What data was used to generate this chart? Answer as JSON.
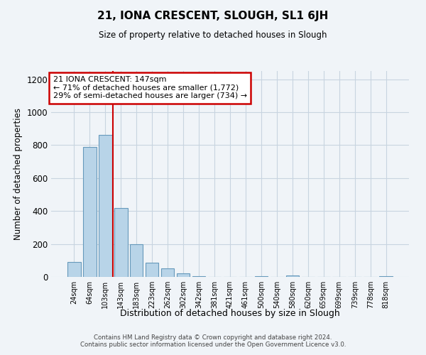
{
  "title": "21, IONA CRESCENT, SLOUGH, SL1 6JH",
  "subtitle": "Size of property relative to detached houses in Slough",
  "xlabel": "Distribution of detached houses by size in Slough",
  "ylabel": "Number of detached properties",
  "bar_labels": [
    "24sqm",
    "64sqm",
    "103sqm",
    "143sqm",
    "183sqm",
    "223sqm",
    "262sqm",
    "302sqm",
    "342sqm",
    "381sqm",
    "421sqm",
    "461sqm",
    "500sqm",
    "540sqm",
    "580sqm",
    "620sqm",
    "659sqm",
    "699sqm",
    "739sqm",
    "778sqm",
    "818sqm"
  ],
  "bar_values": [
    90,
    790,
    860,
    420,
    200,
    85,
    50,
    20,
    5,
    0,
    0,
    0,
    5,
    0,
    10,
    0,
    0,
    0,
    0,
    0,
    5
  ],
  "bar_color": "#b8d4e8",
  "bar_edge_color": "#6699bb",
  "vline_x": 2.5,
  "annotation_box_text": "21 IONA CRESCENT: 147sqm\n← 71% of detached houses are smaller (1,772)\n29% of semi-detached houses are larger (734) →",
  "box_edge_color": "#cc0000",
  "ylim": [
    0,
    1250
  ],
  "yticks": [
    0,
    200,
    400,
    600,
    800,
    1000,
    1200
  ],
  "bg_color": "#f0f4f8",
  "grid_color": "#c8d4e0",
  "footer_line1": "Contains HM Land Registry data © Crown copyright and database right 2024.",
  "footer_line2": "Contains public sector information licensed under the Open Government Licence v3.0."
}
